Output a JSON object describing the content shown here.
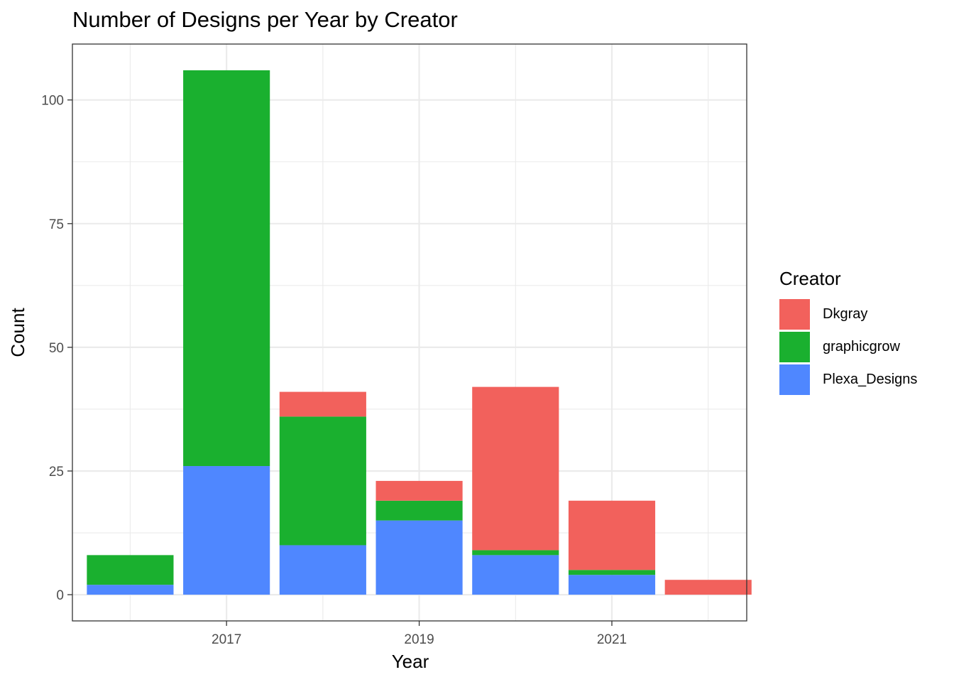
{
  "chart_data": {
    "type": "bar",
    "stacked": true,
    "title": "Number of Designs per Year by Creator",
    "xlabel": "Year",
    "ylabel": "Count",
    "x": [
      2016,
      2017,
      2018,
      2019,
      2020,
      2021,
      2022
    ],
    "x_ticks": [
      2017,
      2019,
      2021
    ],
    "x_tick_labels": [
      "2017",
      "2019",
      "2021"
    ],
    "xlim": [
      2015.4,
      2022.4
    ],
    "y_ticks": [
      0,
      25,
      50,
      75,
      100
    ],
    "y_tick_labels": [
      "0",
      "25",
      "50",
      "75",
      "100"
    ],
    "ylim": [
      -5.3,
      111.3
    ],
    "grid": true,
    "legend_title": "Creator",
    "legend_position": "right",
    "series": [
      {
        "name": "Dkgray",
        "color": "#F2615C",
        "values": [
          0,
          0,
          5,
          4,
          33,
          14,
          3
        ]
      },
      {
        "name": "graphicgrow",
        "color": "#1AB02F",
        "values": [
          6,
          80,
          26,
          4,
          1,
          1,
          0
        ]
      },
      {
        "name": "Plexa_Designs",
        "color": "#4F87FF",
        "values": [
          2,
          26,
          10,
          15,
          8,
          4,
          0
        ]
      }
    ]
  }
}
